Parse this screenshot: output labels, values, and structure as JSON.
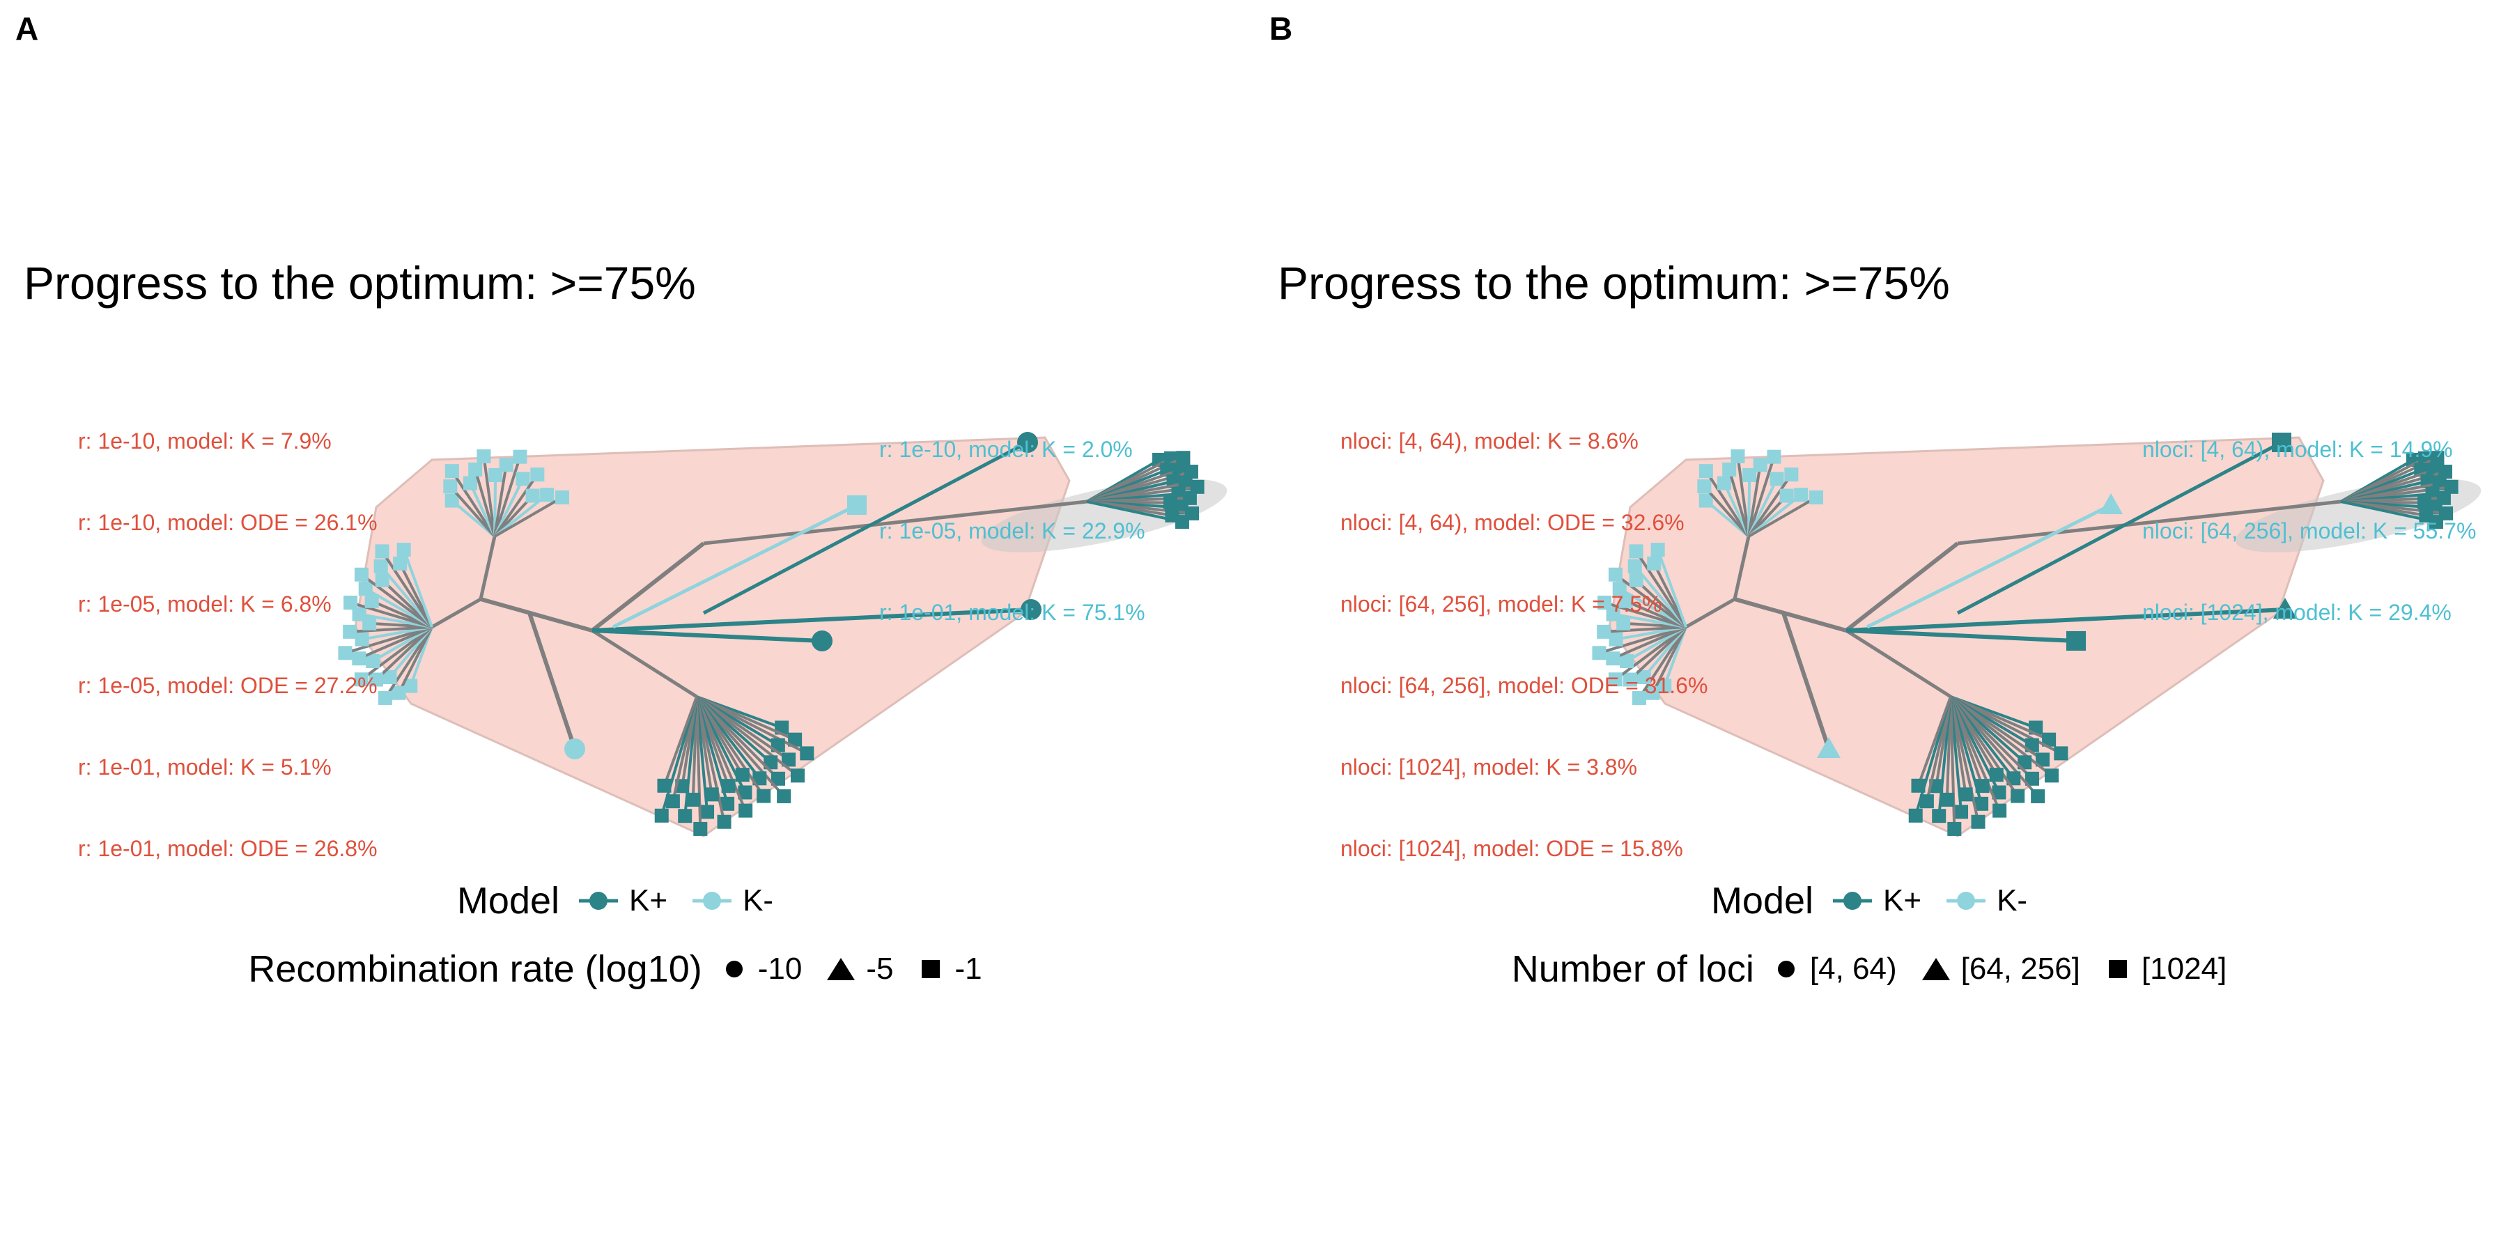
{
  "colors": {
    "k_plus": "#2C8388",
    "k_minus": "#8FD3DD",
    "hull": "#F8D0C8",
    "branch": "#7F7F7F",
    "ann_red": "#E0503C",
    "ann_blue": "#4EC0D2"
  },
  "panels": [
    {
      "label": "A",
      "title": "Progress to the optimum: >=75%",
      "annotations_red": [
        "r: 1e-10, model: K = 7.9%",
        "r: 1e-10, model: ODE = 26.1%",
        "r: 1e-05, model: K = 6.8%",
        "r: 1e-05, model: ODE = 27.2%",
        "r: 1e-01, model: K = 5.1%",
        "r: 1e-01, model: ODE = 26.8%"
      ],
      "annotations_blue": [
        "r: 1e-10, model: K = 2.0%",
        "r: 1e-05, model: K = 22.9%",
        "r: 1e-01, model: K = 75.1%"
      ],
      "legend_model": {
        "title": "Model",
        "items": [
          "K+",
          "K-"
        ]
      },
      "legend_shape": {
        "title": "Recombination rate (log10)",
        "items": [
          {
            "shape": "circle",
            "label": "-10"
          },
          {
            "shape": "triangle",
            "label": "-5"
          },
          {
            "shape": "square",
            "label": "-1"
          }
        ]
      }
    },
    {
      "label": "B",
      "title": "Progress to the optimum: >=75%",
      "annotations_red": [
        "nloci: [4, 64), model: K = 8.6%",
        "nloci: [4, 64), model: ODE = 32.6%",
        "nloci: [64, 256], model: K = 7.5%",
        "nloci: [64, 256], model: ODE = 31.6%",
        "nloci: [1024], model: K = 3.8%",
        "nloci: [1024], model: ODE = 15.8%"
      ],
      "annotations_blue": [
        "nloci: [4, 64), model: K = 14.9%",
        "nloci: [64, 256], model: K = 55.7%",
        "nloci: [1024], model: K = 29.4%"
      ],
      "legend_model": {
        "title": "Model",
        "items": [
          "K+",
          "K-"
        ]
      },
      "legend_shape": {
        "title": "Number of loci",
        "items": [
          {
            "shape": "circle",
            "label": "[4, 64)"
          },
          {
            "shape": "triangle",
            "label": "[64, 256]"
          },
          {
            "shape": "square",
            "label": "[1024]"
          }
        ]
      }
    }
  ]
}
